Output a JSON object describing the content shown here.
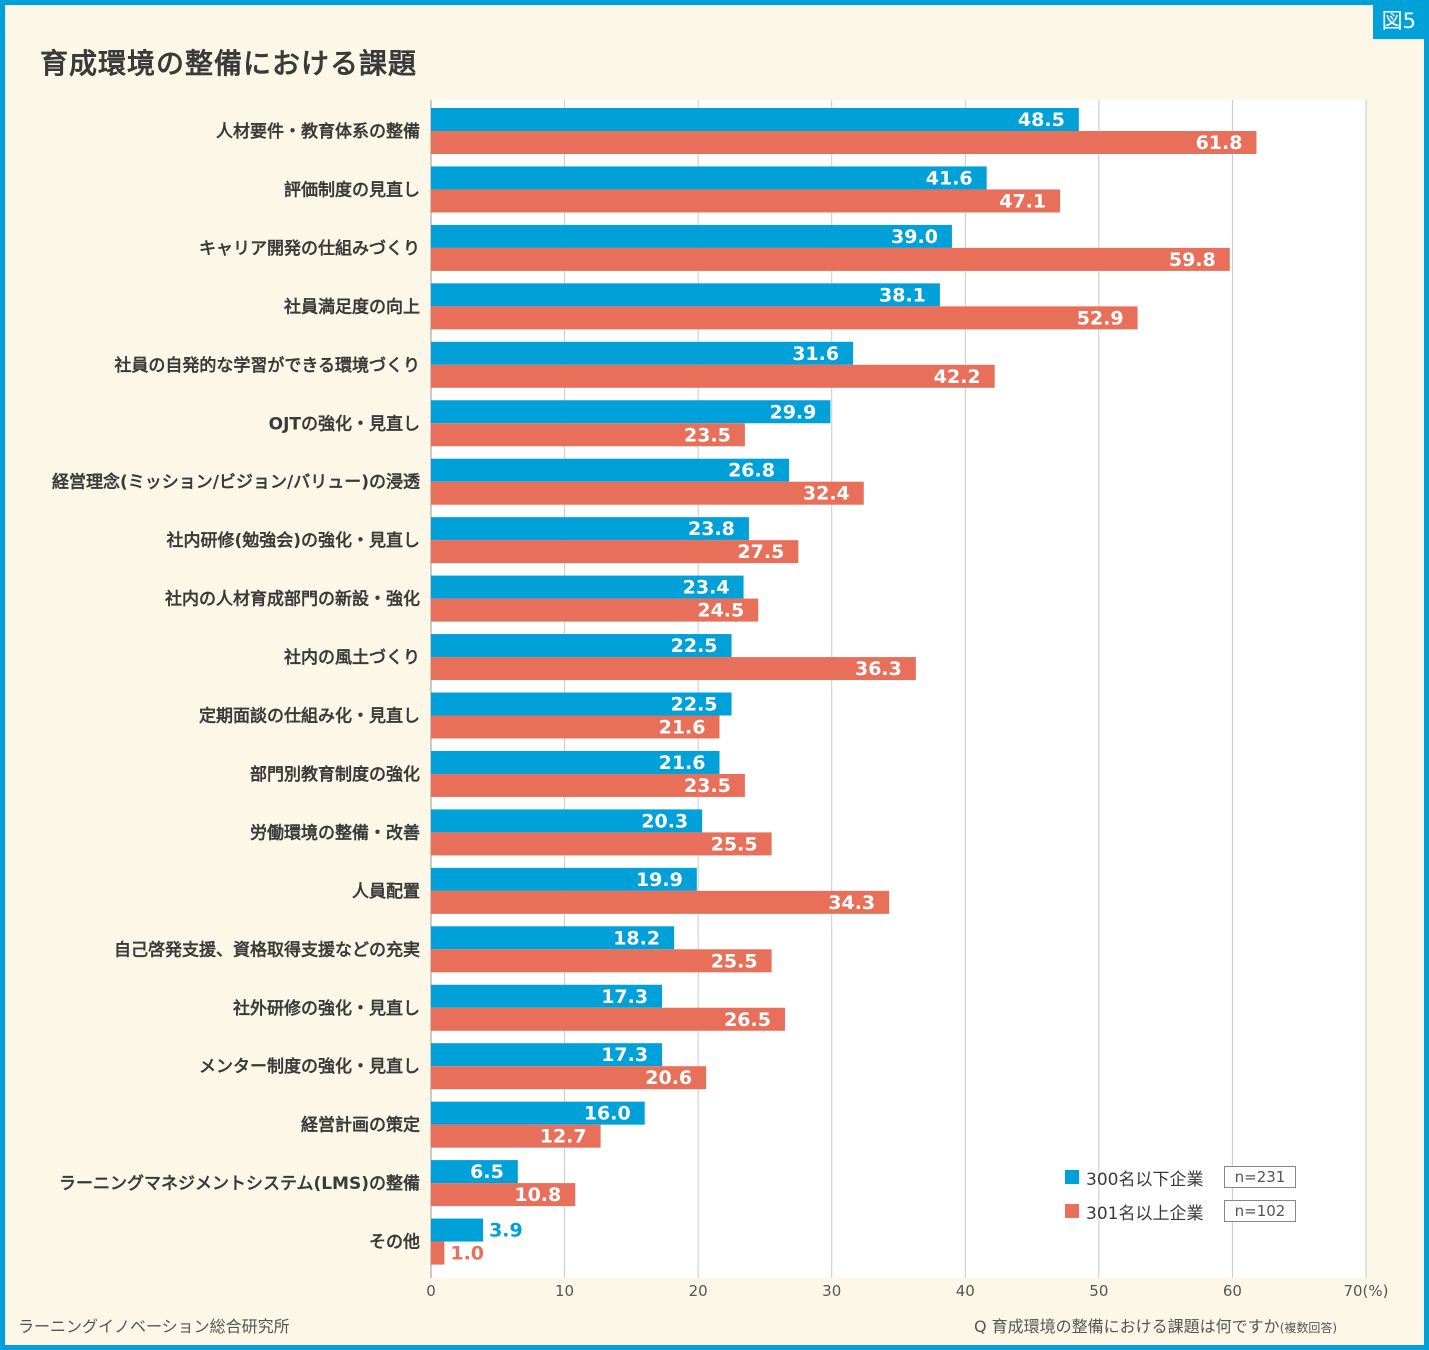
{
  "figure_label": "図5",
  "chart_data": {
    "type": "bar",
    "orientation": "horizontal",
    "title": "育成環境の整備における課題",
    "categories": [
      "人材要件・教育体系の整備",
      "評価制度の見直し",
      "キャリア開発の仕組みづくり",
      "社員満足度の向上",
      "社員の自発的な学習ができる環境づくり",
      "OJTの強化・見直し",
      "経営理念(ミッション/ビジョン/バリュー)の浸透",
      "社内研修(勉強会)の強化・見直し",
      "社内の人材育成部門の新設・強化",
      "社内の風土づくり",
      "定期面談の仕組み化・見直し",
      "部門別教育制度の強化",
      "労働環境の整備・改善",
      "人員配置",
      "自己啓発支援、資格取得支援などの充実",
      "社外研修の強化・見直し",
      "メンター制度の強化・見直し",
      "経営計画の策定",
      "ラーニングマネジメントシステム(LMS)の整備",
      "その他"
    ],
    "series": [
      {
        "name": "300名以下企業",
        "n": "n=231",
        "color": "#00a0d8",
        "values": [
          48.5,
          41.6,
          39.0,
          38.1,
          31.6,
          29.9,
          26.8,
          23.8,
          23.4,
          22.5,
          22.5,
          21.6,
          20.3,
          19.9,
          18.2,
          17.3,
          17.3,
          16.0,
          6.5,
          3.9
        ]
      },
      {
        "name": "301名以上企業",
        "n": "n=102",
        "color": "#e8705a",
        "values": [
          61.8,
          47.1,
          59.8,
          52.9,
          42.2,
          23.5,
          32.4,
          27.5,
          24.5,
          36.3,
          21.6,
          23.5,
          25.5,
          34.3,
          25.5,
          26.5,
          20.6,
          12.7,
          10.8,
          1.0
        ]
      }
    ],
    "xlim": [
      0,
      70
    ],
    "xticks": [
      0,
      10,
      20,
      30,
      40,
      50,
      60,
      70
    ],
    "xunit": "(%)",
    "grid": true,
    "legend_position": "bottom-right"
  },
  "footer": {
    "source": "ラーニングイノベーション総合研究所",
    "question": "Q 育成環境の整備における課題は何ですか",
    "question_note": "(複数回答)"
  }
}
